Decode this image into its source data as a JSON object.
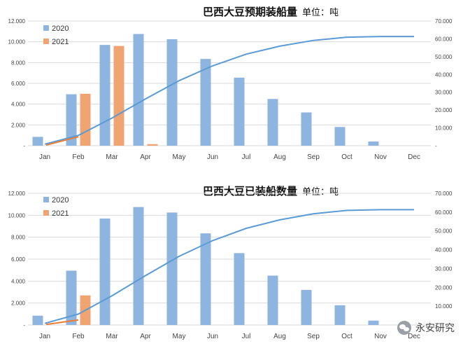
{
  "colors": {
    "bar_2020": "#8db5df",
    "bar_2021": "#f0a472",
    "line_cum": "#5b9bd5",
    "line_2021": "#ed7d31",
    "grid": "#d9d9d9"
  },
  "chart_data": [
    {
      "type": "bar",
      "title": "巴西大豆预期装船量",
      "unit_label": "单位：吨",
      "categories": [
        "Jan",
        "Feb",
        "Mar",
        "Apr",
        "May",
        "Jun",
        "Jul",
        "Aug",
        "Sep",
        "Oct",
        "Nov",
        "Dec"
      ],
      "y_ticks": [
        "-",
        "2.000",
        "4.000",
        "6.000",
        "8.000",
        "10.000",
        "12.000"
      ],
      "y2_ticks": [
        "-",
        "10.000",
        "20.000",
        "30.000",
        "40.000",
        "50.000",
        "60.000",
        "70.000"
      ],
      "ylim": [
        0,
        12000
      ],
      "y2lim": [
        0,
        70000
      ],
      "legend": [
        "2020",
        "2021"
      ],
      "legend_position": "top-left",
      "grid": true,
      "series": [
        {
          "name": "2020",
          "kind": "bar",
          "axis": "left",
          "values": [
            850,
            4950,
            9700,
            10750,
            10250,
            8350,
            6550,
            4500,
            3200,
            1800,
            400,
            0
          ]
        },
        {
          "name": "2021",
          "kind": "bar",
          "axis": "left",
          "values": [
            null,
            5000,
            9600,
            150,
            null,
            null,
            null,
            null,
            null,
            null,
            null,
            null
          ]
        },
        {
          "kind": "line",
          "axis": "right",
          "values": [
            850,
            5800,
            15500,
            26250,
            36500,
            44850,
            51400,
            55900,
            59100,
            60900,
            61300,
            61300
          ]
        },
        {
          "kind": "line",
          "axis": "right",
          "values": [
            300,
            5000,
            null,
            null,
            null,
            null,
            null,
            null,
            null,
            null,
            null,
            null
          ]
        }
      ]
    },
    {
      "type": "bar",
      "title": "巴西大豆已装船数量",
      "unit_label": "单位：吨",
      "categories": [
        "Jan",
        "Feb",
        "Mar",
        "Apr",
        "May",
        "Jun",
        "Jul",
        "Aug",
        "Sep",
        "Oct",
        "Nov",
        "Dec"
      ],
      "y_ticks": [
        "-",
        "2.000",
        "4.000",
        "6.000",
        "8.000",
        "10.000",
        "12.000"
      ],
      "y2_ticks": [
        "-",
        "10.000",
        "20.000",
        "30.000",
        "40.000",
        "50.000",
        "60.000",
        "70.000"
      ],
      "ylim": [
        0,
        12000
      ],
      "y2lim": [
        0,
        70000
      ],
      "legend": [
        "2020",
        "2021"
      ],
      "legend_position": "top-left",
      "grid": true,
      "series": [
        {
          "name": "2020",
          "kind": "bar",
          "axis": "left",
          "values": [
            850,
            4950,
            9700,
            10750,
            10250,
            8350,
            6550,
            4500,
            3200,
            1800,
            400,
            0
          ]
        },
        {
          "name": "2021",
          "kind": "bar",
          "axis": "left",
          "values": [
            null,
            2700,
            null,
            null,
            null,
            null,
            null,
            null,
            null,
            null,
            null,
            null
          ]
        },
        {
          "kind": "line",
          "axis": "right",
          "values": [
            850,
            5800,
            15500,
            26250,
            36500,
            44850,
            51400,
            55900,
            59100,
            60900,
            61300,
            61300
          ]
        },
        {
          "kind": "line",
          "axis": "right",
          "values": [
            300,
            2700,
            null,
            null,
            null,
            null,
            null,
            null,
            null,
            null,
            null,
            null
          ]
        }
      ]
    }
  ],
  "watermark": {
    "icon": "wechat-icon",
    "text": "永安研究"
  }
}
